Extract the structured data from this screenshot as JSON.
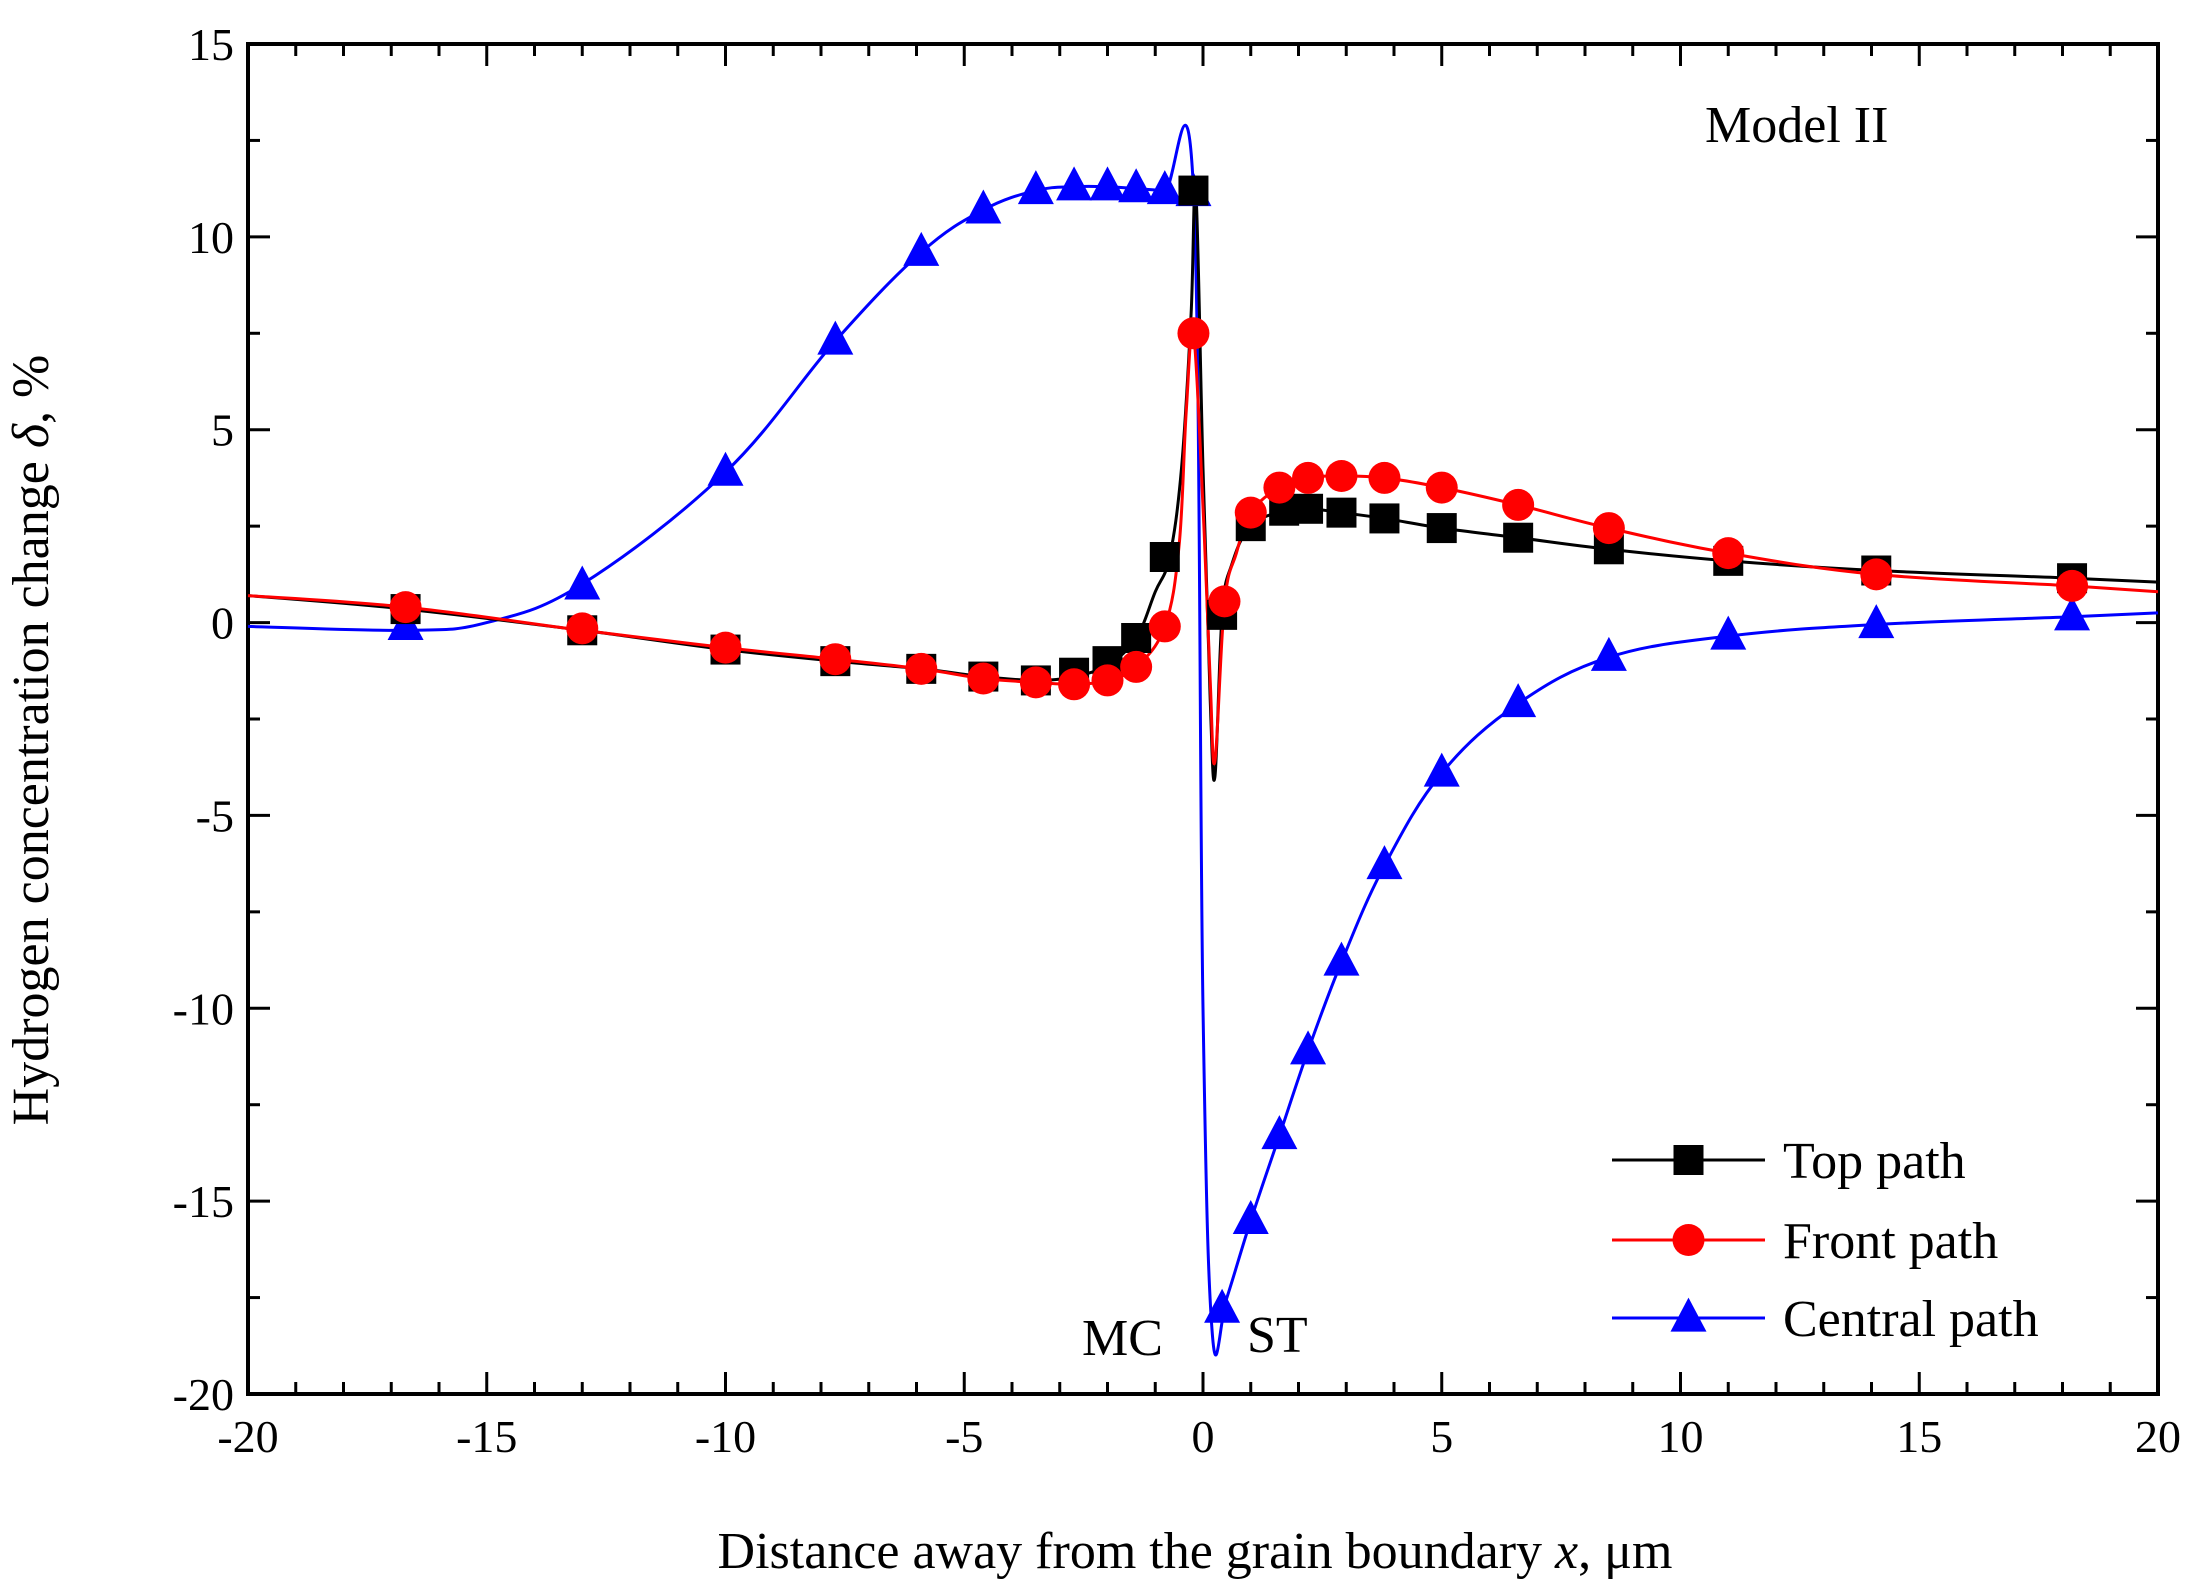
{
  "chart_data": {
    "type": "line",
    "xlabel_main": "Distance away from the grain boundary ",
    "xlabel_var": "x",
    "xlabel_unit": ", μm",
    "ylabel_main": "Hydrogen concentration change ",
    "ylabel_var": "δ",
    "ylabel_unit": ", %",
    "xlim": [
      -20,
      20
    ],
    "ylim": [
      -20,
      15
    ],
    "xticks": [
      -20,
      -15,
      -10,
      -5,
      0,
      5,
      10,
      15,
      20
    ],
    "yticks": [
      -20,
      -15,
      -10,
      -5,
      0,
      5,
      10,
      15
    ],
    "xtick_labels": [
      "-20",
      "-15",
      "-10",
      "-5",
      "0",
      "5",
      "10",
      "15",
      "20"
    ],
    "ytick_labels": [
      "-20",
      "-15",
      "-10",
      "-5",
      "0",
      "5",
      "10",
      "15"
    ],
    "grid": false,
    "legend_position": "bottom-right",
    "annotations": {
      "model": "Model II",
      "left_region": "MC",
      "right_region": "ST"
    },
    "series": [
      {
        "name": "Top path",
        "color": "#000000",
        "marker": "square",
        "line": [
          [
            -20,
            0.7
          ],
          [
            -16.7,
            0.35
          ],
          [
            -13,
            -0.2
          ],
          [
            -10,
            -0.7
          ],
          [
            -7.7,
            -1.0
          ],
          [
            -5.9,
            -1.2
          ],
          [
            -4.6,
            -1.4
          ],
          [
            -3.5,
            -1.5
          ],
          [
            -2.7,
            -1.4
          ],
          [
            -2.0,
            -1.1
          ],
          [
            -1.4,
            -0.4
          ],
          [
            -1.0,
            0.8
          ],
          [
            -0.7,
            1.7
          ],
          [
            -0.45,
            4.0
          ],
          [
            -0.25,
            8.0
          ],
          [
            -0.15,
            11.2
          ],
          [
            0.0,
            4.0
          ],
          [
            0.15,
            -2.0
          ],
          [
            0.25,
            -4.0
          ],
          [
            0.4,
            0.2
          ],
          [
            0.6,
            1.5
          ],
          [
            1.0,
            2.5
          ],
          [
            1.7,
            2.9
          ],
          [
            2.2,
            2.95
          ],
          [
            2.9,
            2.85
          ],
          [
            3.8,
            2.7
          ],
          [
            5.0,
            2.45
          ],
          [
            6.6,
            2.2
          ],
          [
            8.5,
            1.9
          ],
          [
            11.0,
            1.6
          ],
          [
            14.1,
            1.35
          ],
          [
            18.2,
            1.15
          ],
          [
            20,
            1.05
          ]
        ],
        "points": [
          [
            -16.7,
            0.35
          ],
          [
            -13,
            -0.2
          ],
          [
            -10,
            -0.7
          ],
          [
            -7.7,
            -1.0
          ],
          [
            -5.9,
            -1.2
          ],
          [
            -4.6,
            -1.4
          ],
          [
            -3.5,
            -1.5
          ],
          [
            -2.7,
            -1.3
          ],
          [
            -2.0,
            -1.0
          ],
          [
            -1.4,
            -0.4
          ],
          [
            -0.8,
            1.7
          ],
          [
            -0.2,
            11.2
          ],
          [
            0.4,
            0.2
          ],
          [
            1.0,
            2.5
          ],
          [
            1.7,
            2.9
          ],
          [
            2.2,
            2.95
          ],
          [
            2.9,
            2.85
          ],
          [
            3.8,
            2.7
          ],
          [
            5.0,
            2.45
          ],
          [
            6.6,
            2.2
          ],
          [
            8.5,
            1.9
          ],
          [
            11.0,
            1.6
          ],
          [
            14.1,
            1.35
          ],
          [
            18.2,
            1.15
          ]
        ]
      },
      {
        "name": "Front path",
        "color": "#ff0000",
        "marker": "circle",
        "line": [
          [
            -20,
            0.7
          ],
          [
            -16.7,
            0.4
          ],
          [
            -13,
            -0.2
          ],
          [
            -10,
            -0.65
          ],
          [
            -7.7,
            -0.95
          ],
          [
            -5.9,
            -1.2
          ],
          [
            -4.6,
            -1.45
          ],
          [
            -3.5,
            -1.55
          ],
          [
            -2.7,
            -1.6
          ],
          [
            -2.0,
            -1.5
          ],
          [
            -1.4,
            -1.15
          ],
          [
            -0.8,
            -0.1
          ],
          [
            -0.5,
            2.0
          ],
          [
            -0.35,
            5.5
          ],
          [
            -0.2,
            7.5
          ],
          [
            0.0,
            3.0
          ],
          [
            0.15,
            -1.5
          ],
          [
            0.25,
            -3.6
          ],
          [
            0.45,
            0.5
          ],
          [
            0.7,
            1.8
          ],
          [
            1.0,
            2.85
          ],
          [
            1.6,
            3.5
          ],
          [
            2.2,
            3.75
          ],
          [
            2.9,
            3.8
          ],
          [
            3.8,
            3.75
          ],
          [
            5.0,
            3.5
          ],
          [
            6.6,
            3.05
          ],
          [
            8.5,
            2.45
          ],
          [
            11.0,
            1.8
          ],
          [
            14.1,
            1.25
          ],
          [
            18.2,
            0.95
          ],
          [
            20,
            0.8
          ]
        ],
        "points": [
          [
            -16.7,
            0.4
          ],
          [
            -13,
            -0.15
          ],
          [
            -10,
            -0.65
          ],
          [
            -7.7,
            -0.95
          ],
          [
            -5.9,
            -1.2
          ],
          [
            -4.6,
            -1.45
          ],
          [
            -3.5,
            -1.55
          ],
          [
            -2.7,
            -1.6
          ],
          [
            -2.0,
            -1.5
          ],
          [
            -1.4,
            -1.15
          ],
          [
            -0.8,
            -0.1
          ],
          [
            -0.2,
            7.5
          ],
          [
            0.45,
            0.55
          ],
          [
            1.0,
            2.85
          ],
          [
            1.6,
            3.5
          ],
          [
            2.2,
            3.75
          ],
          [
            2.9,
            3.8
          ],
          [
            3.8,
            3.75
          ],
          [
            5.0,
            3.5
          ],
          [
            6.6,
            3.05
          ],
          [
            8.5,
            2.45
          ],
          [
            11.0,
            1.8
          ],
          [
            14.1,
            1.25
          ],
          [
            18.2,
            0.95
          ]
        ]
      },
      {
        "name": "Central path",
        "color": "#0000ff",
        "marker": "triangle",
        "line": [
          [
            -20,
            -0.1
          ],
          [
            -16.7,
            -0.2
          ],
          [
            -15,
            0.0
          ],
          [
            -13,
            1.0
          ],
          [
            -10,
            3.9
          ],
          [
            -7.7,
            7.3
          ],
          [
            -5.9,
            9.6
          ],
          [
            -4.6,
            10.7
          ],
          [
            -3.5,
            11.2
          ],
          [
            -2.7,
            11.3
          ],
          [
            -2.0,
            11.3
          ],
          [
            -1.4,
            11.25
          ],
          [
            -0.8,
            11.2
          ],
          [
            -0.2,
            11.2
          ],
          [
            0.0,
            -10.0
          ],
          [
            0.2,
            -18.5
          ],
          [
            0.5,
            -17.5
          ],
          [
            1.0,
            -15.5
          ],
          [
            1.6,
            -13.3
          ],
          [
            2.2,
            -11.1
          ],
          [
            2.9,
            -8.8
          ],
          [
            3.8,
            -6.3
          ],
          [
            5.0,
            -3.9
          ],
          [
            6.6,
            -2.1
          ],
          [
            8.5,
            -0.9
          ],
          [
            11.0,
            -0.35
          ],
          [
            14.1,
            -0.05
          ],
          [
            18.2,
            0.15
          ],
          [
            20,
            0.25
          ]
        ],
        "points": [
          [
            -16.7,
            -0.1
          ],
          [
            -13,
            0.95
          ],
          [
            -10,
            3.9
          ],
          [
            -7.7,
            7.3
          ],
          [
            -5.9,
            9.6
          ],
          [
            -4.6,
            10.7
          ],
          [
            -3.5,
            11.2
          ],
          [
            -2.7,
            11.3
          ],
          [
            -2.0,
            11.3
          ],
          [
            -1.4,
            11.25
          ],
          [
            -0.8,
            11.2
          ],
          [
            -0.2,
            11.15
          ],
          [
            0.4,
            -17.8
          ],
          [
            1.0,
            -15.5
          ],
          [
            1.6,
            -13.3
          ],
          [
            2.2,
            -11.1
          ],
          [
            2.9,
            -8.8
          ],
          [
            3.8,
            -6.3
          ],
          [
            5.0,
            -3.9
          ],
          [
            6.6,
            -2.1
          ],
          [
            8.5,
            -0.9
          ],
          [
            11.0,
            -0.35
          ],
          [
            14.1,
            -0.05
          ],
          [
            18.2,
            0.15
          ]
        ]
      }
    ]
  }
}
